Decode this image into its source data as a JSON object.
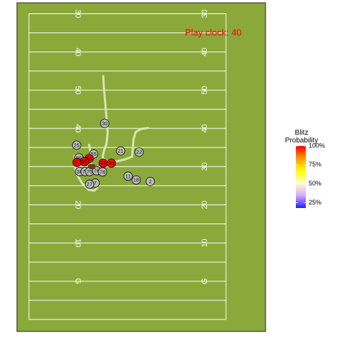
{
  "chart_data": {
    "type": "scatter",
    "title": "",
    "xlabel": "",
    "ylabel": "",
    "play_clock_text": "Play clock: 40",
    "colors": {
      "field": "#8aa93a",
      "lines": "#ffffff",
      "track": "#d8e6b0",
      "play_clock": "#ff0000",
      "ball": "#7a3b1a",
      "offense": "#bdbdbd"
    },
    "axes": {
      "x_range": [
        0,
        53.3
      ],
      "y_range": [
        20,
        100
      ],
      "grid_step_yards": 5
    },
    "yard_numbers_left": [
      {
        "label": "G",
        "y": 30
      },
      {
        "label": "10",
        "y": 40
      },
      {
        "label": "20",
        "y": 50
      },
      {
        "label": "30",
        "y": 60
      },
      {
        "label": "40",
        "y": 70
      },
      {
        "label": "50",
        "y": 80
      },
      {
        "label": "40",
        "y": 90
      },
      {
        "label": "30",
        "y": 100
      }
    ],
    "yard_numbers_right": [
      {
        "label": "G",
        "y": 30
      },
      {
        "label": "10",
        "y": 40
      },
      {
        "label": "20",
        "y": 50
      },
      {
        "label": "30",
        "y": 60
      },
      {
        "label": "40",
        "y": 70
      },
      {
        "label": "50",
        "y": 80
      },
      {
        "label": "40",
        "y": 90
      },
      {
        "label": "30",
        "y": 100
      }
    ],
    "tracks": [
      {
        "points": [
          [
            20.1,
            83.7
          ],
          [
            20.3,
            80.1
          ],
          [
            20.7,
            76.0
          ],
          [
            21.0,
            72.4
          ],
          [
            21.3,
            68.9
          ],
          [
            21.0,
            66.0
          ],
          [
            20.3,
            64.2
          ],
          [
            19.9,
            62.3
          ],
          [
            21.2,
            61.4
          ],
          [
            23.8,
            61.4
          ],
          [
            26.0,
            61.9
          ],
          [
            27.9,
            62.6
          ],
          [
            28.1,
            65.0
          ],
          [
            28.3,
            67.2
          ],
          [
            28.9,
            69.1
          ],
          [
            30.5,
            69.9
          ],
          [
            32.3,
            70.1
          ]
        ]
      },
      {
        "points": [
          [
            16.3,
            65.7
          ],
          [
            16.6,
            63.8
          ],
          [
            16.8,
            61.1
          ],
          [
            17.5,
            59.3
          ],
          [
            19.2,
            58.9
          ]
        ]
      },
      {
        "points": [
          [
            12.4,
            62.8
          ],
          [
            12.4,
            60.0
          ],
          [
            13.1,
            57.7
          ],
          [
            14.4,
            55.6
          ],
          [
            16.2,
            53.9
          ],
          [
            17.7,
            53.7
          ],
          [
            18.5,
            54.5
          ]
        ]
      }
    ],
    "ball": {
      "x": 17.0,
      "y": 60.0
    },
    "players": [
      {
        "label": "30",
        "x": 20.5,
        "y": 71.3,
        "blitz": null
      },
      {
        "label": "25",
        "x": 12.9,
        "y": 65.6,
        "blitz": null
      },
      {
        "label": "21",
        "x": 24.8,
        "y": 64.1,
        "blitz": null
      },
      {
        "label": "22",
        "x": 29.8,
        "y": 63.8,
        "blitz": null
      },
      {
        "label": "55",
        "x": 17.5,
        "y": 63.3,
        "blitz": null
      },
      {
        "label": "99",
        "x": 13.5,
        "y": 62.3,
        "blitz": null
      },
      {
        "label": "53",
        "x": 16.3,
        "y": 62.1,
        "blitz": 1.0
      },
      {
        "label": "90",
        "x": 15.0,
        "y": 61.3,
        "blitz": 1.0
      },
      {
        "label": "17",
        "x": 13.0,
        "y": 61.1,
        "blitz": 1.0
      },
      {
        "label": "73",
        "x": 20.1,
        "y": 60.9,
        "blitz": 1.0
      },
      {
        "label": "95",
        "x": 22.3,
        "y": 60.9,
        "blitz": 0.98
      },
      {
        "label": "38",
        "x": 13.7,
        "y": 58.7,
        "blitz": null
      },
      {
        "label": "71",
        "x": 15.2,
        "y": 58.7,
        "blitz": null
      },
      {
        "label": "75",
        "x": 16.4,
        "y": 58.7,
        "blitz": null
      },
      {
        "label": "76",
        "x": 18.3,
        "y": 58.9,
        "blitz": null
      },
      {
        "label": "78",
        "x": 19.9,
        "y": 58.6,
        "blitz": null
      },
      {
        "label": "11",
        "x": 26.8,
        "y": 57.5,
        "blitz": null
      },
      {
        "label": "18",
        "x": 29.0,
        "y": 56.5,
        "blitz": null
      },
      {
        "label": "2",
        "x": 32.8,
        "y": 56.1,
        "blitz": null
      },
      {
        "label": "7",
        "x": 17.9,
        "y": 55.7,
        "blitz": null
      },
      {
        "label": "27",
        "x": 16.4,
        "y": 55.4,
        "blitz": null
      }
    ],
    "legend": {
      "title": "Blitz\nProbability",
      "placement": "right",
      "range": [
        0.18,
        1.0
      ],
      "ticks": [
        {
          "label": "100%",
          "value": 1.0
        },
        {
          "label": "75%",
          "value": 0.75
        },
        {
          "label": "50%",
          "value": 0.5
        },
        {
          "label": "25%",
          "value": 0.25
        }
      ],
      "stops": [
        "#1e1eff",
        "#d5a6ff",
        "#ffffcc",
        "#ffff00",
        "#ff9900",
        "#ff0000"
      ]
    }
  }
}
